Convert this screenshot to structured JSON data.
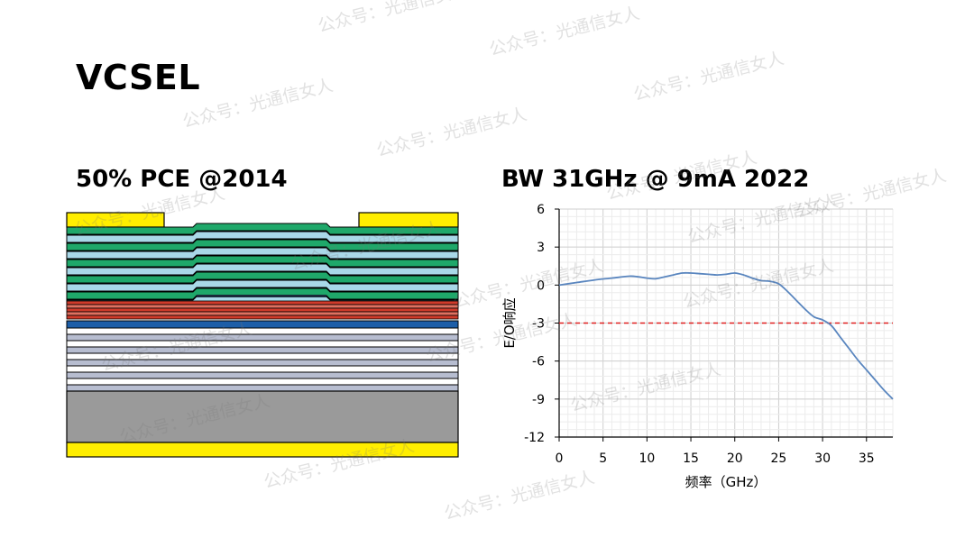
{
  "title": "VCSEL",
  "left_panel": {
    "subtitle": "50% PCE @2014"
  },
  "right_panel": {
    "subtitle": "BW 31GHz @ 9mA 2022"
  },
  "watermark_text": "公众号：光通信女人",
  "colors": {
    "gold": "#ffee00",
    "green": "#1fa86a",
    "light_blue": "#a9d8e8",
    "red": "#d03b2b",
    "blue": "#1d5ea8",
    "gray_blue": "#b7bdd0",
    "substrate": "#9a9a9a",
    "curve": "#5a86bf",
    "threshold": "#e02020"
  },
  "chart_data": {
    "type": "line",
    "xlabel": "频率（GHz）",
    "ylabel": "E/O响应",
    "xlim": [
      0,
      38
    ],
    "ylim": [
      -12,
      6
    ],
    "xticks": [
      0,
      5,
      10,
      15,
      20,
      25,
      30,
      35
    ],
    "yticks": [
      6,
      3,
      0,
      -3,
      -6,
      -9,
      -12
    ],
    "grid": true,
    "threshold_y": -3,
    "x": [
      0,
      2,
      4,
      6,
      8,
      9,
      10,
      11,
      12,
      13,
      14,
      15,
      16,
      17,
      18,
      19,
      20,
      21,
      22,
      23,
      24,
      25,
      26,
      27,
      28,
      29,
      30,
      31,
      32,
      33,
      34,
      35,
      36,
      37,
      38
    ],
    "y": [
      0,
      0.2,
      0.4,
      0.55,
      0.7,
      0.65,
      0.55,
      0.5,
      0.65,
      0.8,
      0.95,
      0.95,
      0.9,
      0.85,
      0.8,
      0.85,
      0.95,
      0.8,
      0.55,
      0.35,
      0.3,
      0.1,
      -0.5,
      -1.2,
      -1.9,
      -2.5,
      -2.75,
      -3.2,
      -4.1,
      -5.0,
      -5.9,
      -6.7,
      -7.5,
      -8.3,
      -9.0
    ]
  }
}
